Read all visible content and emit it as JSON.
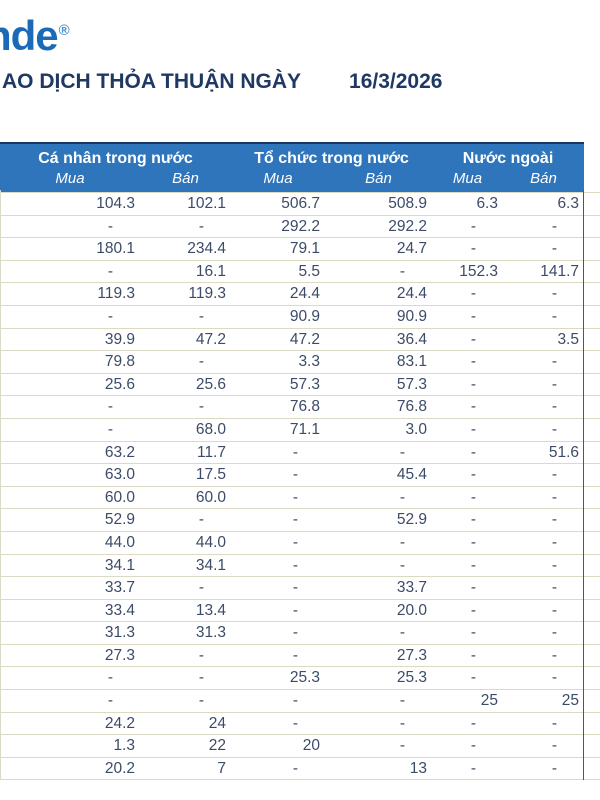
{
  "brand": {
    "logo_text": "nde",
    "reg_mark": "®"
  },
  "header": {
    "title": "AO DỊCH THỎA THUẬN NGÀY",
    "date": "16/3/2026"
  },
  "table": {
    "groups": [
      {
        "label": "Cá nhân trong nước",
        "columns": [
          "Mua",
          "Bán"
        ]
      },
      {
        "label": "Tổ chức trong nước",
        "columns": [
          "Mua",
          "Bán"
        ]
      },
      {
        "label": "Nước ngoài",
        "columns": [
          "Mua",
          "Bán"
        ]
      }
    ],
    "rows": [
      [
        "104.3",
        "102.1",
        "506.7",
        "508.9",
        "6.3",
        "6.3"
      ],
      [
        "-",
        "-",
        "292.2",
        "292.2",
        "-",
        "-"
      ],
      [
        "180.1",
        "234.4",
        "79.1",
        "24.7",
        "-",
        "-"
      ],
      [
        "-",
        "16.1",
        "5.5",
        "-",
        "152.3",
        "141.7"
      ],
      [
        "119.3",
        "119.3",
        "24.4",
        "24.4",
        "-",
        "-"
      ],
      [
        "-",
        "-",
        "90.9",
        "90.9",
        "-",
        "-"
      ],
      [
        "39.9",
        "47.2",
        "47.2",
        "36.4",
        "-",
        "3.5"
      ],
      [
        "79.8",
        "-",
        "3.3",
        "83.1",
        "-",
        "-"
      ],
      [
        "25.6",
        "25.6",
        "57.3",
        "57.3",
        "-",
        "-"
      ],
      [
        "-",
        "-",
        "76.8",
        "76.8",
        "-",
        "-"
      ],
      [
        "-",
        "68.0",
        "71.1",
        "3.0",
        "-",
        "-"
      ],
      [
        "63.2",
        "11.7",
        "-",
        "-",
        "-",
        "51.6"
      ],
      [
        "63.0",
        "17.5",
        "-",
        "45.4",
        "-",
        "-"
      ],
      [
        "60.0",
        "60.0",
        "-",
        "-",
        "-",
        "-"
      ],
      [
        "52.9",
        "-",
        "-",
        "52.9",
        "-",
        "-"
      ],
      [
        "44.0",
        "44.0",
        "-",
        "-",
        "-",
        "-"
      ],
      [
        "34.1",
        "34.1",
        "-",
        "-",
        "-",
        "-"
      ],
      [
        "33.7",
        "-",
        "-",
        "33.7",
        "-",
        "-"
      ],
      [
        "33.4",
        "13.4",
        "-",
        "20.0",
        "-",
        "-"
      ],
      [
        "31.3",
        "31.3",
        "-",
        "-",
        "-",
        "-"
      ],
      [
        "27.3",
        "-",
        "-",
        "27.3",
        "-",
        "-"
      ],
      [
        "-",
        "-",
        "25.3",
        "25.3",
        "-",
        "-"
      ],
      [
        "-",
        "-",
        "-",
        "-",
        "25",
        "25"
      ],
      [
        "24.2",
        "24",
        "-",
        "-",
        "-",
        "-"
      ],
      [
        "1.3",
        "22",
        "20",
        "-",
        "-",
        "-"
      ],
      [
        "20.2",
        "7",
        "-",
        "13",
        "-",
        "-"
      ]
    ]
  },
  "colors": {
    "logo_blue": "#1A6AB8",
    "title_navy": "#1F3864",
    "header_bg": "#2E75BC",
    "header_top_border": "#17375E",
    "header_text": "#FFFFFF",
    "value_text": "#3C4B68",
    "row_line": "#DBDAC5",
    "right_border": "#4D5566"
  }
}
